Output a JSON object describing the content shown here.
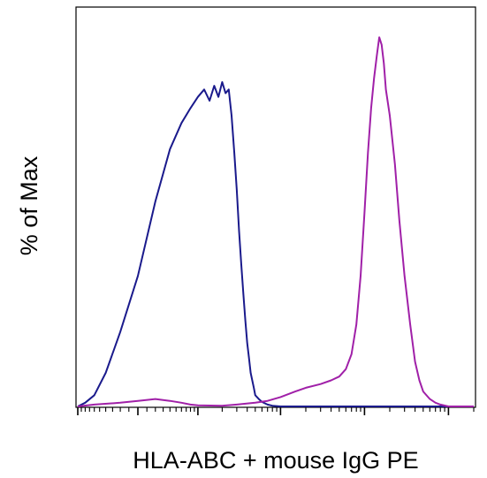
{
  "chart_data": {
    "type": "line",
    "title": "",
    "xlabel": "HLA-ABC + mouse IgG PE",
    "ylabel": "% of Max",
    "x_scale": "log",
    "xlim": [
      -100,
      200000
    ],
    "ylim": [
      0,
      100
    ],
    "grid": false,
    "legend": "none",
    "series": [
      {
        "color": "#1a1a8c",
        "x": [
          -100,
          -80,
          -60,
          -40,
          -20,
          0,
          20,
          40,
          60,
          80,
          100,
          120,
          140,
          160,
          180,
          200,
          220,
          240,
          260,
          280,
          300,
          320,
          340,
          360,
          380,
          400,
          420,
          440,
          460,
          480,
          500,
          550,
          600,
          700,
          800,
          1000,
          100000,
          200000
        ],
        "y": [
          0,
          1,
          3,
          9,
          20,
          35,
          55,
          69,
          76,
          80,
          83,
          85,
          82,
          86,
          83,
          87,
          84,
          85,
          78,
          68,
          58,
          47,
          38,
          30,
          23,
          17,
          13,
          9,
          7,
          5,
          3,
          2,
          1.2,
          0.5,
          0.2,
          0,
          0,
          0
        ]
      },
      {
        "color": "#a020a8",
        "x": [
          -100,
          -60,
          -20,
          0,
          20,
          40,
          60,
          80,
          100,
          200,
          300,
          500,
          700,
          1000,
          1500,
          2000,
          3000,
          4000,
          5000,
          6000,
          7000,
          8000,
          9000,
          10000,
          11000,
          12000,
          13000,
          14000,
          15000,
          16000,
          17000,
          18000,
          20000,
          23000,
          26000,
          30000,
          35000,
          40000,
          45000,
          50000,
          60000,
          70000,
          80000,
          100000,
          150000,
          200000
        ],
        "y": [
          0,
          0.5,
          1,
          1.5,
          2,
          1.5,
          1,
          0.5,
          0.3,
          0.2,
          0.5,
          1,
          1.5,
          2.5,
          4,
          5,
          6,
          7,
          8,
          10,
          14,
          22,
          35,
          52,
          68,
          80,
          88,
          94,
          99,
          97,
          92,
          85,
          78,
          65,
          50,
          35,
          22,
          12,
          7,
          4,
          2,
          1,
          0.5,
          0,
          0,
          0
        ]
      }
    ]
  }
}
